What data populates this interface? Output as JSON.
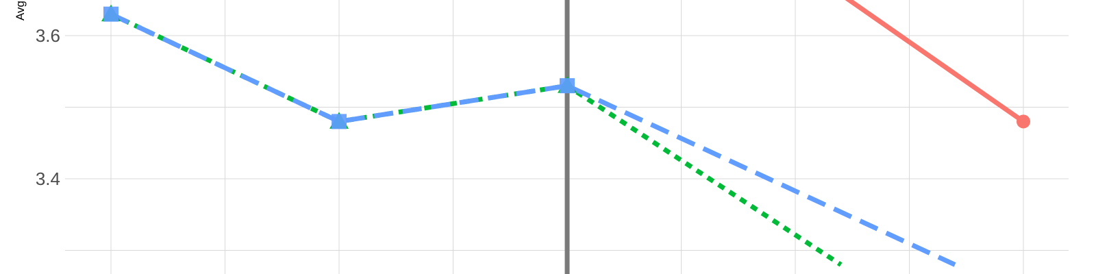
{
  "chart_data": {
    "type": "line",
    "ylabel": "Avg",
    "x": [
      1,
      2,
      3,
      4,
      5
    ],
    "ylim": [
      3.3,
      3.65
    ],
    "yticks": [
      {
        "value": 3.6,
        "label": "3.6"
      },
      {
        "value": 3.4,
        "label": "3.4"
      }
    ],
    "minor_y": [
      3.5,
      3.3
    ],
    "grid": true,
    "vline_x": 3,
    "series": [
      {
        "color": "#f8766d",
        "style": "solid",
        "marker": "circle",
        "points": [
          [
            4.1,
            3.68
          ],
          [
            5,
            3.48
          ]
        ]
      },
      {
        "color": "#00ba38",
        "style": "dotted",
        "marker": "triangle",
        "points": [
          [
            1,
            3.63
          ],
          [
            2,
            3.48
          ],
          [
            3,
            3.53
          ],
          [
            4.2,
            3.28
          ]
        ]
      },
      {
        "color": "#619cff",
        "style": "dashed",
        "marker": "square",
        "points": [
          [
            1,
            3.63
          ],
          [
            2,
            3.48
          ],
          [
            3,
            3.53
          ],
          [
            4.7,
            3.28
          ]
        ]
      }
    ]
  }
}
